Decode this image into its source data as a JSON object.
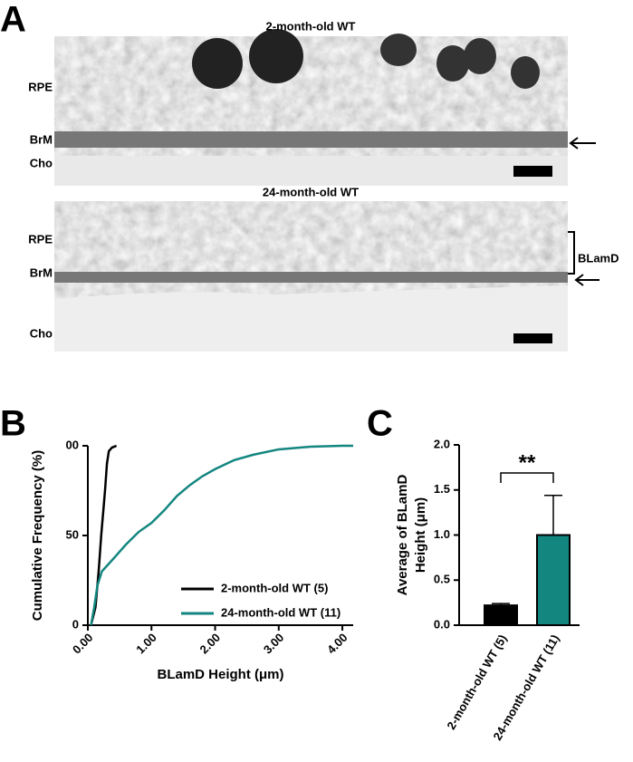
{
  "panel_a": {
    "letter": "A",
    "images": [
      {
        "title": "2-month-old WT",
        "labels": [
          "RPE",
          "BrM",
          "Cho"
        ]
      },
      {
        "title": "24-month-old WT",
        "labels": [
          "RPE",
          "BrM",
          "Cho"
        ],
        "bracket_label": "BLamD"
      }
    ]
  },
  "chart_data": [
    {
      "type": "line",
      "panel": "B",
      "xlabel": "BLamD Height (μm)",
      "ylabel": "Cumulative Frequency (%)",
      "xlim": [
        0,
        4.17
      ],
      "ylim": [
        0,
        100
      ],
      "xticks": [
        {
          "value": 0,
          "label": "0.00"
        },
        {
          "value": 1,
          "label": "1.00"
        },
        {
          "value": 2,
          "label": "2.00"
        },
        {
          "value": 3,
          "label": "3.00"
        },
        {
          "value": 4,
          "label": "4.00"
        }
      ],
      "yticks": [
        0,
        50,
        {
          "value": 100,
          "label": "00"
        }
      ],
      "legend": "lower right",
      "series": [
        {
          "name": "2-month-old WT (5)",
          "color": "#000000",
          "x": [
            0.05,
            0.12,
            0.17,
            0.21,
            0.27,
            0.3,
            0.33,
            0.38,
            0.45
          ],
          "values": [
            0,
            10,
            30,
            50,
            75,
            90,
            97,
            99,
            100
          ]
        },
        {
          "name": "24-month-old WT (11)",
          "color": "#138680",
          "x": [
            0.05,
            0.1,
            0.15,
            0.22,
            0.4,
            0.6,
            0.8,
            1.0,
            1.2,
            1.4,
            1.6,
            1.8,
            2.0,
            2.3,
            2.6,
            3.0,
            3.5,
            4.0,
            4.17
          ],
          "values": [
            0,
            10,
            22,
            30,
            37,
            45,
            52,
            57,
            64,
            72,
            78,
            83,
            87,
            92,
            95,
            98,
            99.5,
            100,
            100
          ]
        }
      ]
    },
    {
      "type": "bar",
      "panel": "C",
      "ylabel": [
        "Average of BLamD",
        "Height (μm)"
      ],
      "categories": [
        "2-month-old WT (5)",
        "24-month-old WT (11)"
      ],
      "values": [
        0.22,
        1.0
      ],
      "errors": [
        0.02,
        0.44
      ],
      "colors": [
        "#000000",
        "#138680"
      ],
      "ylim": [
        0,
        2.0
      ],
      "yticks": [
        {
          "value": 0,
          "label": "0.0"
        },
        0.5,
        {
          "value": 1,
          "label": "1.0"
        },
        1.5,
        {
          "value": 2,
          "label": "2.0"
        }
      ],
      "annotation": "**"
    }
  ]
}
